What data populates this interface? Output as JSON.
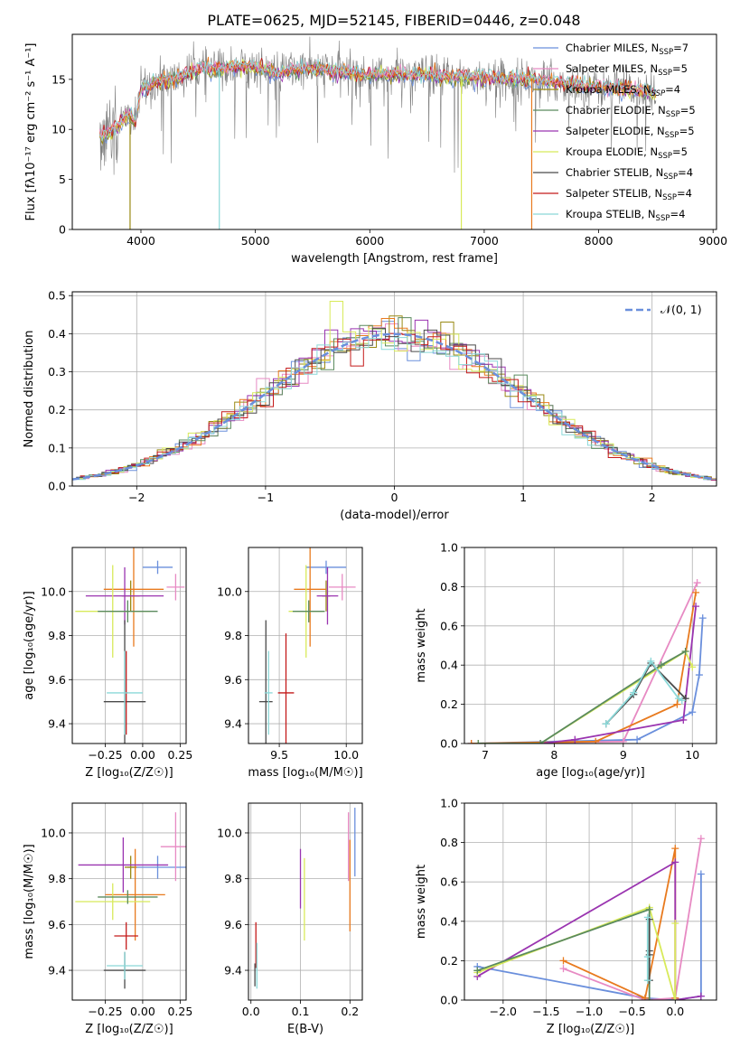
{
  "figure": {
    "title": "PLATE=0625, MJD=52145, FIBERID=0446, z=0.048"
  },
  "colors": {
    "Chabrier MILES": "#6a8fdc",
    "Salpeter MILES": "#e78ac3",
    "Kroupa MILES": "#9a8a14",
    "Chabrier ELODIE": "#5a8a5e",
    "Salpeter ELODIE": "#9a34b0",
    "Kroupa ELODIE": "#d8ea5a",
    "Chabrier STELIB": "#4a4a4a",
    "Salpeter STELIB": "#c41a1a",
    "Kroupa STELIB": "#8ad8d8",
    "orange": "#e87a1e",
    "gray_data": "#7f7f7f"
  },
  "chart_data": [
    {
      "type": "line",
      "id": "spectrum",
      "xlabel": "wavelength [Angstrom, rest frame]",
      "ylabel": "Flux [fλ10⁻¹⁷ erg cm⁻² s⁻¹ A⁻¹]",
      "xlim": [
        3400,
        9030
      ],
      "ylim": [
        0,
        19.5
      ],
      "xticks": [
        4000,
        5000,
        6000,
        7000,
        8000,
        9000
      ],
      "yticks": [
        0,
        5,
        10,
        15
      ],
      "legend_placement": "right",
      "legend": [
        {
          "label": "Chabrier MILES, N",
          "sub": "SSP",
          "suffix": "=7",
          "color_key": "Chabrier MILES"
        },
        {
          "label": "Salpeter MILES, N",
          "sub": "SSP",
          "suffix": "=5",
          "color_key": "Salpeter MILES"
        },
        {
          "label": "Kroupa MILES, N",
          "sub": "SSP",
          "suffix": "=4",
          "color_key": "Kroupa MILES"
        },
        {
          "label": "Chabrier ELODIE, N",
          "sub": "SSP",
          "suffix": "=5",
          "color_key": "Chabrier ELODIE"
        },
        {
          "label": "Salpeter ELODIE, N",
          "sub": "SSP",
          "suffix": "=5",
          "color_key": "Salpeter ELODIE"
        },
        {
          "label": "Kroupa ELODIE, N",
          "sub": "SSP",
          "suffix": "=5",
          "color_key": "Kroupa ELODIE"
        },
        {
          "label": "Chabrier STELIB, N",
          "sub": "SSP",
          "suffix": "=4",
          "color_key": "Chabrier STELIB"
        },
        {
          "label": "Salpeter STELIB, N",
          "sub": "SSP",
          "suffix": "=4",
          "color_key": "Salpeter STELIB"
        },
        {
          "label": "Kroupa STELIB, N",
          "sub": "SSP",
          "suffix": "=4",
          "color_key": "Kroupa STELIB"
        }
      ],
      "continuum": [
        [
          3640,
          9.5
        ],
        [
          3700,
          9.5
        ],
        [
          3800,
          10.5
        ],
        [
          3900,
          11.5
        ],
        [
          3950,
          10.5
        ],
        [
          4000,
          14
        ],
        [
          4100,
          14.5
        ],
        [
          4200,
          15
        ],
        [
          4300,
          15
        ],
        [
          4400,
          15.5
        ],
        [
          4500,
          16
        ],
        [
          4600,
          16
        ],
        [
          4700,
          16
        ],
        [
          4800,
          16.3
        ],
        [
          4900,
          16.3
        ],
        [
          5000,
          16.3
        ],
        [
          5100,
          16
        ],
        [
          5200,
          15.5
        ],
        [
          5300,
          16
        ],
        [
          5400,
          16
        ],
        [
          5500,
          16
        ],
        [
          5600,
          16
        ],
        [
          5700,
          15.8
        ],
        [
          5800,
          15.8
        ],
        [
          5900,
          15.5
        ],
        [
          6000,
          15.5
        ],
        [
          6200,
          15.5
        ],
        [
          6400,
          15.5
        ],
        [
          6600,
          15.3
        ],
        [
          6800,
          15.3
        ],
        [
          7000,
          15.2
        ],
        [
          7200,
          15
        ],
        [
          7400,
          15
        ],
        [
          7600,
          14.7
        ],
        [
          7800,
          14.5
        ],
        [
          8000,
          14.2
        ],
        [
          8200,
          14
        ],
        [
          8400,
          13.8
        ],
        [
          8500,
          13.6
        ]
      ],
      "drops": [
        {
          "series": "Kroupa MILES",
          "x": 3905,
          "y_bottom": 0
        },
        {
          "series": "Kroupa STELIB",
          "x": 4685,
          "y_bottom": 0
        },
        {
          "series": "Kroupa ELODIE",
          "x": 6800,
          "y_bottom": 0
        },
        {
          "series": "orange",
          "x": 7415,
          "y_bottom": 0
        }
      ]
    },
    {
      "type": "step",
      "id": "residuals",
      "xlabel": "(data-model)/error",
      "ylabel": "Normed distribution",
      "xlim": [
        -2.5,
        2.5
      ],
      "ylim": [
        0,
        0.51
      ],
      "xticks": [
        -2,
        -1,
        0,
        1,
        2
      ],
      "yticks": [
        0.0,
        0.1,
        0.2,
        0.3,
        0.4,
        0.5
      ],
      "grid": true,
      "legend_placement": "top-right",
      "legend": [
        {
          "label": "𝒩(0, 1)",
          "color_key": "Chabrier MILES",
          "dashed": true
        }
      ],
      "bin_width": 0.1,
      "gaussian": {
        "mean": 0,
        "sigma": 1
      }
    },
    {
      "type": "errorbar",
      "id": "age_vs_Z",
      "xlabel": "Z [log₁₀(Z/Z☉)]",
      "ylabel": "age  [log₁₀(age/yr)]",
      "xlim": [
        -0.47,
        0.29
      ],
      "ylim": [
        9.31,
        10.2
      ],
      "xticks": [
        -0.25,
        0.0,
        0.25
      ],
      "yticks": [
        9.4,
        9.6,
        9.8,
        10.0
      ],
      "grid": true,
      "points": [
        {
          "c": "Chabrier MILES",
          "x": 0.1,
          "xe": 0.1,
          "y": 10.11,
          "ye": 0.03
        },
        {
          "c": "Salpeter MILES",
          "x": 0.22,
          "xe": 0.06,
          "y": 10.02,
          "ye": 0.06
        },
        {
          "c": "Kroupa MILES",
          "x": -0.08,
          "xe": 0.06,
          "y": 9.98,
          "ye": 0.07
        },
        {
          "c": "orange",
          "x": -0.06,
          "xe": 0.2,
          "y": 10.01,
          "ye": 0.26
        },
        {
          "c": "Salpeter ELODIE",
          "x": -0.12,
          "xe": 0.26,
          "y": 9.98,
          "ye": 0.13
        },
        {
          "c": "Kroupa ELODIE",
          "x": -0.2,
          "xe": 0.25,
          "y": 9.91,
          "ye": 0.21
        },
        {
          "c": "Chabrier ELODIE",
          "x": -0.1,
          "xe": 0.2,
          "y": 9.91,
          "ye": 0.05
        },
        {
          "c": "Chabrier STELIB",
          "x": -0.12,
          "xe": 0.14,
          "y": 9.5,
          "ye": 0.37
        },
        {
          "c": "Salpeter STELIB",
          "x": -0.11,
          "xe": 0.01,
          "y": 9.54,
          "ye": 0.19
        },
        {
          "c": "Kroupa STELIB",
          "x": -0.12,
          "xe": 0.12,
          "y": 9.54,
          "ye": 0.19
        }
      ]
    },
    {
      "type": "errorbar",
      "id": "age_vs_mass",
      "xlabel": "mass [log₁₀(M/M☉)]",
      "ylabel": "",
      "xlim": [
        9.27,
        10.12
      ],
      "ylim": [
        9.31,
        10.2
      ],
      "xticks": [
        9.5,
        10.0
      ],
      "yticks": [
        9.4,
        9.6,
        9.8,
        10.0
      ],
      "grid": true,
      "points": [
        {
          "c": "Chabrier MILES",
          "x": 9.85,
          "xe": 0.15,
          "y": 10.11,
          "ye": 0.03
        },
        {
          "c": "Salpeter MILES",
          "x": 9.97,
          "xe": 0.1,
          "y": 10.02,
          "ye": 0.06
        },
        {
          "c": "Kroupa MILES",
          "x": 9.85,
          "xe": 0.03,
          "y": 9.98,
          "ye": 0.07
        },
        {
          "c": "orange",
          "x": 9.73,
          "xe": 0.12,
          "y": 10.01,
          "ye": 0.26
        },
        {
          "c": "Salpeter ELODIE",
          "x": 9.86,
          "xe": 0.08,
          "y": 9.98,
          "ye": 0.13
        },
        {
          "c": "Kroupa ELODIE",
          "x": 9.7,
          "xe": 0.13,
          "y": 9.91,
          "ye": 0.21
        },
        {
          "c": "Chabrier ELODIE",
          "x": 9.72,
          "xe": 0.12,
          "y": 9.91,
          "ye": 0.05
        },
        {
          "c": "Chabrier STELIB",
          "x": 9.4,
          "xe": 0.05,
          "y": 9.5,
          "ye": 0.37
        },
        {
          "c": "Salpeter STELIB",
          "x": 9.55,
          "xe": 0.06,
          "y": 9.54,
          "ye": 0.27
        },
        {
          "c": "Kroupa STELIB",
          "x": 9.42,
          "xe": 0.03,
          "y": 9.54,
          "ye": 0.19
        }
      ]
    },
    {
      "type": "line",
      "id": "massweight_vs_age",
      "xlabel": "age  [log₁₀(age/yr)]",
      "ylabel": "mass weight",
      "xlim": [
        6.7,
        10.35
      ],
      "ylim": [
        0,
        1
      ],
      "xticks": [
        7,
        8,
        9,
        10
      ],
      "yticks": [
        0.0,
        0.2,
        0.4,
        0.6,
        0.8,
        1.0
      ],
      "grid": true,
      "series": [
        {
          "c": "Chabrier MILES",
          "x": [
            6.8,
            9.2,
            10.0,
            10.1,
            10.15
          ],
          "y": [
            0.0,
            0.02,
            0.16,
            0.35,
            0.64
          ]
        },
        {
          "c": "Salpeter MILES",
          "x": [
            6.8,
            9.0,
            10.07
          ],
          "y": [
            0.0,
            0.01,
            0.82
          ]
        },
        {
          "c": "orange",
          "x": [
            6.8,
            8.6,
            9.78,
            10.05
          ],
          "y": [
            0.0,
            0.01,
            0.2,
            0.77
          ]
        },
        {
          "c": "Salpeter ELODIE",
          "x": [
            7.8,
            8.3,
            9.87,
            10.05
          ],
          "y": [
            0.0,
            0.02,
            0.12,
            0.7
          ]
        },
        {
          "c": "Kroupa ELODIE",
          "x": [
            6.9,
            7.8,
            9.9,
            10.0
          ],
          "y": [
            0.0,
            0.0,
            0.47,
            0.39
          ]
        },
        {
          "c": "Chabrier ELODIE",
          "x": [
            6.9,
            7.8,
            9.55,
            9.9
          ],
          "y": [
            0.0,
            0.0,
            0.4,
            0.47
          ]
        },
        {
          "c": "Chabrier STELIB",
          "x": [
            8.75,
            9.15,
            9.4,
            9.9,
            9.9
          ],
          "y": [
            0.1,
            0.25,
            0.41,
            0.23,
            0.23
          ]
        },
        {
          "c": "Kroupa STELIB",
          "x": [
            8.75,
            9.15,
            9.4,
            9.8,
            9.85
          ],
          "y": [
            0.1,
            0.26,
            0.42,
            0.23,
            0.22
          ]
        }
      ]
    },
    {
      "type": "errorbar",
      "id": "mass_vs_Z",
      "xlabel": "Z [log₁₀(Z/Z☉)]",
      "ylabel": "mass [log₁₀(M/M☉)]",
      "xlim": [
        -0.47,
        0.29
      ],
      "ylim": [
        9.27,
        10.13
      ],
      "xticks": [
        -0.25,
        0.0,
        0.25
      ],
      "yticks": [
        9.4,
        9.6,
        9.8,
        10.0
      ],
      "grid": true,
      "points": [
        {
          "c": "Chabrier MILES",
          "x": 0.1,
          "xe": 0.2,
          "y": 9.85,
          "ye": 0.05
        },
        {
          "c": "Salpeter MILES",
          "x": 0.22,
          "xe": 0.1,
          "y": 9.94,
          "ye": 0.15
        },
        {
          "c": "Kroupa MILES",
          "x": -0.08,
          "xe": 0.04,
          "y": 9.85,
          "ye": 0.05
        },
        {
          "c": "orange",
          "x": -0.05,
          "xe": 0.2,
          "y": 9.73,
          "ye": 0.2
        },
        {
          "c": "Salpeter ELODIE",
          "x": -0.13,
          "xe": 0.3,
          "y": 9.86,
          "ye": 0.12
        },
        {
          "c": "Kroupa ELODIE",
          "x": -0.2,
          "xe": 0.25,
          "y": 9.7,
          "ye": 0.08
        },
        {
          "c": "Chabrier ELODIE",
          "x": -0.1,
          "xe": 0.2,
          "y": 9.72,
          "ye": 0.03
        },
        {
          "c": "Chabrier STELIB",
          "x": -0.12,
          "xe": 0.14,
          "y": 9.4,
          "ye": 0.08
        },
        {
          "c": "Salpeter STELIB",
          "x": -0.11,
          "xe": 0.08,
          "y": 9.55,
          "ye": 0.06
        },
        {
          "c": "Kroupa STELIB",
          "x": -0.12,
          "xe": 0.12,
          "y": 9.42,
          "ye": 0.06
        }
      ]
    },
    {
      "type": "errorbar",
      "id": "mass_vs_ebv",
      "xlabel": "E(B-V)",
      "ylabel": "",
      "xlim": [
        -0.005,
        0.225
      ],
      "ylim": [
        9.27,
        10.13
      ],
      "xticks": [
        0.0,
        0.1,
        0.2
      ],
      "yticks": [
        9.4,
        9.6,
        9.8,
        10.0
      ],
      "grid": true,
      "points": [
        {
          "c": "Chabrier MILES",
          "x": 0.21,
          "ye": 0.15,
          "y": 9.96
        },
        {
          "c": "Salpeter MILES",
          "x": 0.197,
          "ye": 0.15,
          "y": 9.94
        },
        {
          "c": "orange",
          "x": 0.2,
          "ye": 0.2,
          "y": 9.77
        },
        {
          "c": "Salpeter ELODIE",
          "x": 0.1,
          "ye": 0.13,
          "y": 9.8
        },
        {
          "c": "Kroupa ELODIE",
          "x": 0.108,
          "ye": 0.18,
          "y": 9.71
        },
        {
          "c": "Salpeter STELIB",
          "x": 0.01,
          "ye": 0.1,
          "y": 9.51
        },
        {
          "c": "Kroupa STELIB",
          "x": 0.012,
          "ye": 0.1,
          "y": 9.42
        },
        {
          "c": "Chabrier STELIB",
          "x": 0.008,
          "ye": 0.05,
          "y": 9.38
        }
      ]
    },
    {
      "type": "line",
      "id": "massweight_vs_Z",
      "xlabel": "Z [log₁₀(Z/Z☉)]",
      "ylabel": "mass weight",
      "xlim": [
        -2.45,
        0.48
      ],
      "ylim": [
        0,
        1
      ],
      "xticks": [
        -2.0,
        -1.5,
        -1.0,
        -0.5,
        0.0
      ],
      "yticks": [
        0.0,
        0.2,
        0.4,
        0.6,
        0.8,
        1.0
      ],
      "grid": true,
      "series": [
        {
          "c": "Chabrier MILES",
          "x": [
            -2.3,
            -0.35,
            0.0,
            0.3,
            0.3
          ],
          "y": [
            0.17,
            0.01,
            0.0,
            0.02,
            0.64
          ]
        },
        {
          "c": "Salpeter MILES",
          "x": [
            -1.3,
            -0.35,
            0.0,
            0.3
          ],
          "y": [
            0.16,
            0.0,
            0.01,
            0.82
          ]
        },
        {
          "c": "orange",
          "x": [
            -1.3,
            -0.35,
            0.0,
            0.0
          ],
          "y": [
            0.2,
            0.01,
            0.77,
            0.01
          ]
        },
        {
          "c": "Salpeter ELODIE",
          "x": [
            -2.3,
            0.0,
            0.0,
            0.3
          ],
          "y": [
            0.12,
            0.7,
            0.0,
            0.02
          ]
        },
        {
          "c": "Kroupa ELODIE",
          "x": [
            -2.3,
            -0.3,
            0.0,
            0.0
          ],
          "y": [
            0.14,
            0.47,
            0.0,
            0.39
          ]
        },
        {
          "c": "Chabrier ELODIE",
          "x": [
            -2.3,
            -0.3,
            -0.3
          ],
          "y": [
            0.15,
            0.46,
            0.0
          ]
        },
        {
          "c": "Chabrier STELIB",
          "x": [
            -0.3,
            -0.3,
            -0.3,
            -0.3
          ],
          "y": [
            0.1,
            0.25,
            0.41,
            0.23
          ]
        },
        {
          "c": "Kroupa STELIB",
          "x": [
            -0.32,
            -0.32,
            -0.32
          ],
          "y": [
            0.1,
            0.42,
            0.22
          ]
        }
      ]
    }
  ]
}
